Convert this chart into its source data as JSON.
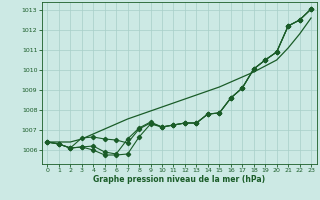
{
  "xlabel": "Graphe pression niveau de la mer (hPa)",
  "ylim": [
    1005.3,
    1013.4
  ],
  "xlim": [
    -0.5,
    23.5
  ],
  "yticks": [
    1006,
    1007,
    1008,
    1009,
    1010,
    1011,
    1012,
    1013
  ],
  "xticks": [
    0,
    1,
    2,
    3,
    4,
    5,
    6,
    7,
    8,
    9,
    10,
    11,
    12,
    13,
    14,
    15,
    16,
    17,
    18,
    19,
    20,
    21,
    22,
    23
  ],
  "bg_color": "#cce9e4",
  "grid_color": "#a8cfc8",
  "line_color": "#1a5c28",
  "series_smooth": [
    1006.4,
    1006.4,
    1006.4,
    1006.55,
    1006.8,
    1007.05,
    1007.3,
    1007.55,
    1007.75,
    1007.95,
    1008.15,
    1008.35,
    1008.55,
    1008.75,
    1008.95,
    1009.15,
    1009.4,
    1009.65,
    1009.9,
    1010.2,
    1010.5,
    1011.1,
    1011.8,
    1012.6
  ],
  "series1": [
    1006.4,
    1006.3,
    1006.1,
    1006.15,
    1006.0,
    1005.75,
    1005.75,
    1005.8,
    1006.65,
    1007.3,
    1007.15,
    1007.25,
    1007.35,
    1007.35,
    1007.8,
    1007.85,
    1008.6,
    1009.1,
    1010.05,
    1010.5,
    1010.9,
    1012.2,
    1012.5,
    1013.05
  ],
  "series2": [
    1006.4,
    1006.3,
    1006.1,
    1006.6,
    1006.65,
    1006.55,
    1006.5,
    1006.35,
    1007.05,
    1007.35,
    1007.15,
    1007.25,
    1007.35,
    1007.35,
    1007.8,
    1007.85,
    1008.6,
    1009.1,
    1010.05,
    1010.5,
    1010.9,
    1012.2,
    1012.5,
    1013.05
  ],
  "series3": [
    1006.4,
    1006.3,
    1006.1,
    1006.15,
    1006.2,
    1005.9,
    1005.8,
    1006.55,
    1007.1,
    1007.4,
    1007.15,
    1007.25,
    1007.35,
    1007.35,
    1007.8,
    1007.85,
    1008.6,
    1009.1,
    1010.05,
    1010.5,
    1010.9,
    1012.2,
    1012.5,
    1013.05
  ]
}
